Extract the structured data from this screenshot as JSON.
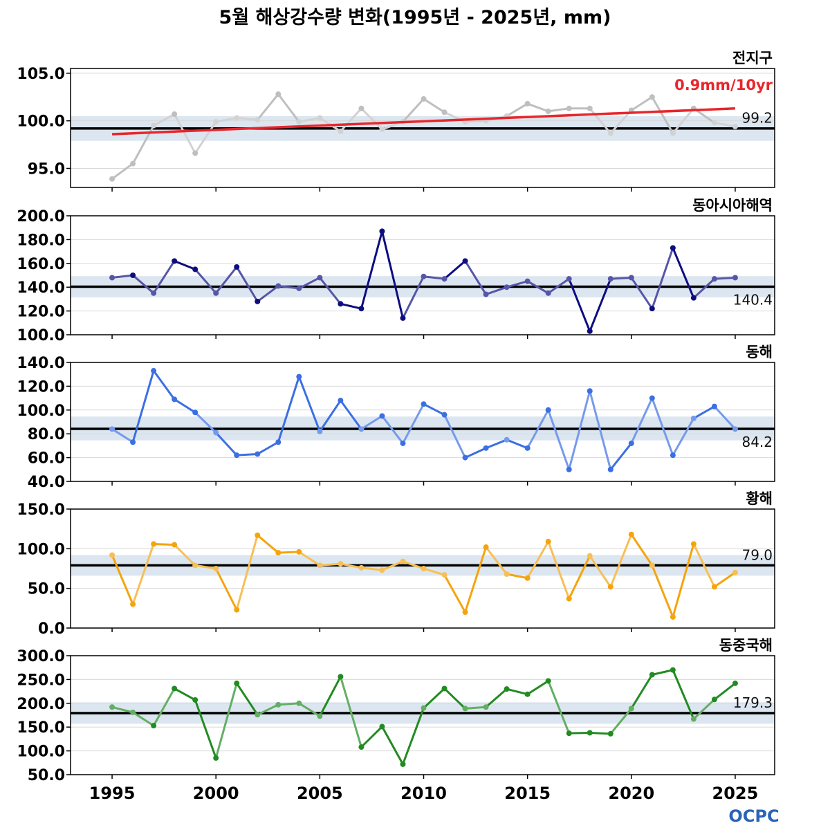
{
  "title": "5월 해상강수량 변화(1995년 - 2025년, mm)",
  "logo": "OCPC",
  "colors": {
    "band": "#dce6f0",
    "grid": "#d9d9d9",
    "climatology_line": "#000000",
    "trend_line": "#e8262b"
  },
  "chart_data": [
    {
      "type": "line",
      "region": "전지구",
      "color": "#bfbfbf",
      "ylim": [
        93.0,
        105.5
      ],
      "yticks": [
        95.0,
        100.0,
        105.0
      ],
      "ytick_labels": [
        "95.0",
        "100.0",
        "105.0"
      ],
      "climatology": 99.2,
      "climatology_label": "99.2",
      "band": [
        97.9,
        100.5
      ],
      "trend": {
        "label": "0.9mm/10yr",
        "start": [
          1995,
          98.6
        ],
        "end": [
          2025,
          101.3
        ]
      },
      "x": [
        1995,
        1996,
        1997,
        1998,
        1999,
        2000,
        2001,
        2002,
        2003,
        2004,
        2005,
        2006,
        2007,
        2008,
        2009,
        2010,
        2011,
        2012,
        2013,
        2014,
        2015,
        2016,
        2017,
        2018,
        2019,
        2020,
        2021,
        2022,
        2023,
        2024,
        2025
      ],
      "values": [
        93.9,
        95.5,
        99.5,
        100.7,
        96.6,
        99.9,
        100.3,
        100.1,
        102.8,
        99.9,
        100.3,
        98.9,
        101.3,
        99.1,
        99.9,
        102.3,
        100.9,
        99.9,
        100.0,
        100.5,
        101.8,
        101.0,
        101.3,
        101.3,
        98.7,
        101.1,
        102.5,
        98.7,
        101.3,
        99.8,
        99.4
      ]
    },
    {
      "type": "line",
      "region": "동아시아해역",
      "color": "#0d0d80",
      "ylim": [
        100.0,
        200.0
      ],
      "yticks": [
        100.0,
        120.0,
        140.0,
        160.0,
        180.0,
        200.0
      ],
      "ytick_labels": [
        "100.0",
        "120.0",
        "140.0",
        "160.0",
        "180.0",
        "200.0"
      ],
      "climatology": 140.4,
      "climatology_label": "140.4",
      "band": [
        131.5,
        149.3
      ],
      "x": [
        1995,
        1996,
        1997,
        1998,
        1999,
        2000,
        2001,
        2002,
        2003,
        2004,
        2005,
        2006,
        2007,
        2008,
        2009,
        2010,
        2011,
        2012,
        2013,
        2014,
        2015,
        2016,
        2017,
        2018,
        2019,
        2020,
        2021,
        2022,
        2023,
        2024,
        2025
      ],
      "values": [
        148,
        150,
        135,
        162,
        155,
        135,
        157,
        128,
        141,
        139,
        148,
        126,
        122,
        187,
        114,
        149,
        147,
        162,
        134,
        140,
        145,
        135,
        147,
        103,
        147,
        148,
        122,
        173,
        131,
        147,
        148
      ]
    },
    {
      "type": "line",
      "region": "동해",
      "color": "#3b6fe3",
      "ylim": [
        40.0,
        140.0
      ],
      "yticks": [
        40.0,
        60.0,
        80.0,
        100.0,
        120.0,
        140.0
      ],
      "ytick_labels": [
        "40.0",
        "60.0",
        "80.0",
        "100.0",
        "120.0",
        "140.0"
      ],
      "climatology": 84.2,
      "climatology_label": "84.2",
      "band": [
        74.5,
        94.5
      ],
      "x": [
        1995,
        1996,
        1997,
        1998,
        1999,
        2000,
        2001,
        2002,
        2003,
        2004,
        2005,
        2006,
        2007,
        2008,
        2009,
        2010,
        2011,
        2012,
        2013,
        2014,
        2015,
        2016,
        2017,
        2018,
        2019,
        2020,
        2021,
        2022,
        2023,
        2024,
        2025
      ],
      "values": [
        84,
        73,
        133,
        109,
        98,
        81,
        62,
        63,
        73,
        128,
        82,
        108,
        84,
        95,
        72,
        105,
        96,
        60,
        68,
        75,
        68,
        100,
        50,
        116,
        50,
        72,
        110,
        62,
        93,
        103,
        84
      ]
    },
    {
      "type": "line",
      "region": "황해",
      "color": "#f5a40c",
      "ylim": [
        0.0,
        150.0
      ],
      "yticks": [
        0.0,
        50.0,
        100.0,
        150.0
      ],
      "ytick_labels": [
        "0.0",
        "50.0",
        "100.0",
        "150.0"
      ],
      "climatology": 79.0,
      "climatology_label": "79.0",
      "band": [
        66.0,
        92.0
      ],
      "x": [
        1995,
        1996,
        1997,
        1998,
        1999,
        2000,
        2001,
        2002,
        2003,
        2004,
        2005,
        2006,
        2007,
        2008,
        2009,
        2010,
        2011,
        2012,
        2013,
        2014,
        2015,
        2016,
        2017,
        2018,
        2019,
        2020,
        2021,
        2022,
        2023,
        2024,
        2025
      ],
      "values": [
        92,
        30,
        106,
        105,
        79,
        75,
        23,
        117,
        95,
        96,
        79,
        81,
        76,
        73,
        84,
        75,
        67,
        20,
        102,
        68,
        63,
        109,
        37,
        91,
        52,
        118,
        79,
        14,
        106,
        52,
        70
      ]
    },
    {
      "type": "line",
      "region": "동중국해",
      "color": "#228b22",
      "ylim": [
        50.0,
        300.0
      ],
      "yticks": [
        50.0,
        100.0,
        150.0,
        200.0,
        250.0,
        300.0
      ],
      "ytick_labels": [
        "50.0",
        "100.0",
        "150.0",
        "200.0",
        "250.0",
        "300.0"
      ],
      "climatology": 179.3,
      "climatology_label": "179.3",
      "band": [
        157.0,
        202.0
      ],
      "x": [
        1995,
        1996,
        1997,
        1998,
        1999,
        2000,
        2001,
        2002,
        2003,
        2004,
        2005,
        2006,
        2007,
        2008,
        2009,
        2010,
        2011,
        2012,
        2013,
        2014,
        2015,
        2016,
        2017,
        2018,
        2019,
        2020,
        2021,
        2022,
        2023,
        2024,
        2025
      ],
      "values": [
        192,
        181,
        153,
        231,
        207,
        85,
        242,
        176,
        197,
        200,
        173,
        256,
        108,
        151,
        72,
        190,
        231,
        189,
        192,
        230,
        219,
        247,
        137,
        138,
        136,
        189,
        260,
        270,
        167,
        208,
        242
      ]
    }
  ],
  "x_axis": {
    "xlim": [
      1993.0,
      2026.9
    ],
    "ticks": [
      1995,
      2000,
      2005,
      2010,
      2015,
      2020,
      2025
    ],
    "tick_labels": [
      "1995",
      "2000",
      "2005",
      "2010",
      "2015",
      "2020",
      "2025"
    ]
  }
}
